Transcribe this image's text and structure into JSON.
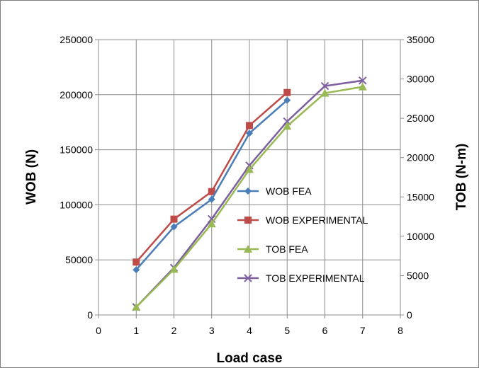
{
  "chart_data": {
    "type": "line",
    "title": "",
    "xlabel": "Load case",
    "ylabel": "WOB (N)",
    "y2label": "TOB (N-m)",
    "xlim": [
      0,
      8
    ],
    "ylim": [
      0,
      250000
    ],
    "y2lim": [
      0,
      35000
    ],
    "x_ticks": [
      "0",
      "1",
      "2",
      "3",
      "4",
      "5",
      "6",
      "7",
      "8"
    ],
    "y_ticks": [
      "0",
      "50000",
      "100000",
      "150000",
      "200000",
      "250000"
    ],
    "y2_ticks": [
      "0",
      "5000",
      "10000",
      "15000",
      "20000",
      "25000",
      "30000",
      "35000"
    ],
    "grid": true,
    "legend_position": "center-right",
    "series": [
      {
        "name": "WOB FEA",
        "axis": "left",
        "color": "#4a7ebb",
        "marker": "diamond",
        "x": [
          1,
          2,
          3,
          4,
          5
        ],
        "values": [
          41000,
          80000,
          105000,
          165000,
          195000
        ]
      },
      {
        "name": "WOB EXPERIMENTAL",
        "axis": "left",
        "color": "#be4b48",
        "marker": "square",
        "x": [
          1,
          2,
          3,
          4,
          5
        ],
        "values": [
          48000,
          87000,
          112000,
          172000,
          202000
        ]
      },
      {
        "name": "TOB FEA",
        "axis": "right",
        "color": "#98b954",
        "marker": "triangle",
        "x": [
          1,
          2,
          3,
          4,
          5,
          6,
          7
        ],
        "values": [
          1000,
          5800,
          11600,
          18500,
          24000,
          28200,
          29000
        ]
      },
      {
        "name": "TOB EXPERIMENTAL",
        "axis": "right",
        "color": "#7d5fa0",
        "marker": "x",
        "x": [
          1,
          2,
          3,
          4,
          5,
          6,
          7
        ],
        "values": [
          1000,
          6000,
          12200,
          19000,
          24600,
          29100,
          29800
        ]
      }
    ]
  }
}
